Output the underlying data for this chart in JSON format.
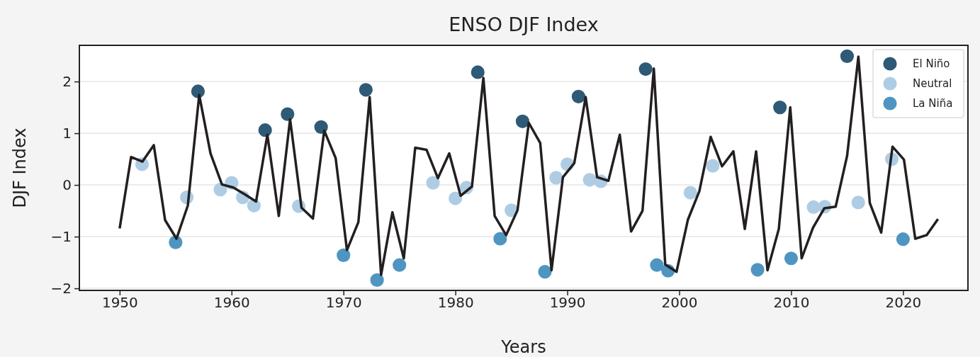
{
  "chart_data": {
    "type": "line",
    "title": "ENSO DJF Index",
    "xlabel": "Years",
    "ylabel": "DJF Index",
    "xlim": [
      1946.4,
      2025.8
    ],
    "xticks": [
      1950,
      1960,
      1970,
      1980,
      1990,
      2000,
      2010,
      2020
    ],
    "ylim": [
      -2.04,
      2.7
    ],
    "yticks": [
      {
        "value": -2,
        "label": "−2"
      },
      {
        "value": -1,
        "label": "−1"
      },
      0,
      1,
      2
    ],
    "grid": "y",
    "legend": "top right",
    "series": [
      {
        "color": "#231f20",
        "marker": "none",
        "x": [
          1950.0,
          1951.02,
          1952.03,
          1953.05,
          1954.06,
          1955.08,
          1956.09,
          1957.11,
          1958.12,
          1959.14,
          1960.16,
          1961.17,
          1962.19,
          1963.2,
          1964.22,
          1965.23,
          1966.25,
          1967.27,
          1968.28,
          1969.3,
          1970.31,
          1971.33,
          1972.34,
          1973.36,
          1974.37,
          1975.39,
          1976.41,
          1977.42,
          1978.44,
          1979.45,
          1980.47,
          1981.48,
          1982.5,
          1983.51,
          1984.53,
          1985.55,
          1986.56,
          1987.58,
          1988.59,
          1989.61,
          1990.62,
          1991.64,
          1992.66,
          1993.67,
          1994.69,
          1995.7,
          1996.72,
          1997.73,
          1998.75,
          1999.76,
          2000.78,
          2001.8,
          2002.81,
          2003.83,
          2004.84,
          2005.86,
          2006.87,
          2007.89,
          2008.9,
          2009.92,
          2010.94,
          2011.95,
          2012.97,
          2013.98,
          2015.0,
          2016.01,
          2017.03,
          2018.05,
          2019.06,
          2020.08,
          2021.09,
          2022.11,
          2023.12
        ],
        "values": [
          -0.84,
          0.54,
          0.45,
          0.77,
          -0.68,
          -1.04,
          -0.4,
          1.74,
          0.61,
          0.01,
          -0.05,
          -0.18,
          -0.32,
          0.97,
          -0.6,
          1.27,
          -0.44,
          -0.65,
          1.05,
          0.52,
          -1.26,
          -0.72,
          1.7,
          -1.74,
          -0.53,
          -1.42,
          0.72,
          0.68,
          0.13,
          0.61,
          -0.21,
          -0.03,
          2.07,
          -0.6,
          -0.97,
          -0.49,
          1.2,
          0.81,
          -1.65,
          0.15,
          0.42,
          1.7,
          0.15,
          0.08,
          0.97,
          -0.9,
          -0.5,
          2.25,
          -1.54,
          -1.68,
          -0.67,
          -0.12,
          0.93,
          0.36,
          0.65,
          -0.85,
          0.65,
          -1.65,
          -0.85,
          1.5,
          -1.42,
          -0.83,
          -0.45,
          -0.42,
          0.56,
          2.48,
          -0.35,
          -0.92,
          0.74,
          0.49,
          -1.04,
          -0.97,
          -0.66
        ]
      },
      {
        "type": "scatter",
        "name": "El Niño",
        "color": "#2e5a77",
        "marker": "circle",
        "x": [
          1957,
          1963,
          1965,
          1968,
          1972,
          1982,
          1986,
          1991,
          1997,
          2009,
          2015
        ],
        "values": [
          1.81,
          1.06,
          1.37,
          1.12,
          1.84,
          2.18,
          1.23,
          1.71,
          2.24,
          1.5,
          2.49
        ]
      },
      {
        "type": "scatter",
        "name": "Neutral",
        "color": "#aecde4",
        "marker": "circle",
        "x": [
          1952,
          1956,
          1959,
          1960,
          1961,
          1962,
          1966,
          1978,
          1980,
          1981,
          1985,
          1989,
          1990,
          1992,
          1993,
          2001,
          2003,
          2012,
          2013,
          2016,
          2019
        ],
        "values": [
          0.4,
          -0.24,
          -0.09,
          0.04,
          -0.24,
          -0.4,
          -0.41,
          0.04,
          -0.26,
          -0.05,
          -0.49,
          0.14,
          0.4,
          0.1,
          0.07,
          -0.15,
          0.37,
          -0.43,
          -0.42,
          -0.34,
          0.5
        ]
      },
      {
        "type": "scatter",
        "name": "La Niña",
        "color": "#4f95c1",
        "marker": "circle",
        "x": [
          1955,
          1970,
          1973,
          1975,
          1984,
          1988,
          1998,
          1999,
          2007,
          2010,
          2020
        ],
        "values": [
          -1.11,
          -1.36,
          -1.84,
          -1.55,
          -1.04,
          -1.68,
          -1.55,
          -1.66,
          -1.64,
          -1.42,
          -1.05
        ]
      }
    ]
  }
}
